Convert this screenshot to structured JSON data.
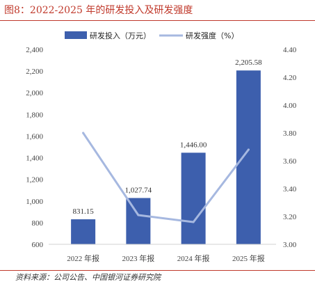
{
  "header": {
    "title": "图8：2022-2025 年的研发投入及研发强度"
  },
  "footer": {
    "source": "资料来源：公司公告、中国银河证券研究院"
  },
  "colors": {
    "bar": "#3d5fad",
    "line": "#a6b8e0",
    "accent": "#c0392b"
  },
  "chart_data": {
    "type": "bar",
    "categories": [
      "2022 年报",
      "2023 年报",
      "2024 年报",
      "2025 年报"
    ],
    "series": [
      {
        "name": "研发投入（万元）",
        "type": "bar",
        "axis": "left",
        "values": [
          831.15,
          1027.74,
          1446.0,
          2205.58
        ],
        "labels": [
          "831.15",
          "1,027.74",
          "1,446.00",
          "2,205.58"
        ]
      },
      {
        "name": "研发强度（%）",
        "type": "line",
        "axis": "right",
        "values": [
          3.8,
          3.21,
          3.16,
          3.68
        ]
      }
    ],
    "y_left": {
      "ylim": [
        600,
        2400
      ],
      "ticks": [
        "600",
        "800",
        "1,000",
        "1,200",
        "1,400",
        "1,600",
        "1,800",
        "2,000",
        "2,200",
        "2,400"
      ]
    },
    "y_right": {
      "ylim": [
        3.0,
        4.4
      ],
      "ticks": [
        "3.00",
        "3.20",
        "3.40",
        "3.60",
        "3.80",
        "4.00",
        "4.20",
        "4.40"
      ]
    },
    "legend": "top-center",
    "grid": false
  }
}
